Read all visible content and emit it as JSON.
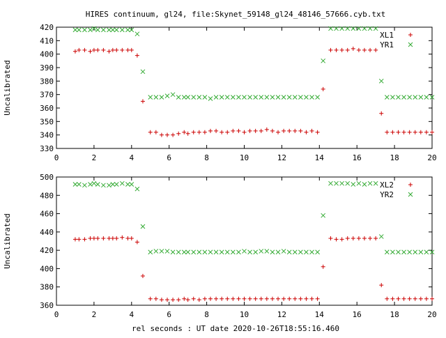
{
  "title": "HIRES continuum, gl24, file:Skynet_59148_gl24_48146_57666.cyb.txt",
  "xlabel": "rel seconds : UT date 2020-10-26T18:55:16.460",
  "colors": {
    "x_series": "#cc0000",
    "y_series": "#33aa33",
    "axes": "#000000"
  },
  "chart_data": [
    {
      "type": "scatter",
      "ylabel": "Uncalibrated",
      "xlim": [
        0,
        20
      ],
      "ylim": [
        330,
        420
      ],
      "x_ticks": [
        0,
        2,
        4,
        6,
        8,
        10,
        12,
        14,
        16,
        18,
        20
      ],
      "y_ticks": [
        330,
        340,
        350,
        360,
        370,
        380,
        390,
        400,
        410,
        420
      ],
      "legend_position": "top-right",
      "series": [
        {
          "name": "XL1",
          "marker": "plus",
          "x": [
            1.0,
            1.2,
            1.5,
            1.8,
            2.0,
            2.2,
            2.5,
            2.8,
            3.0,
            3.2,
            3.5,
            3.8,
            4.0,
            4.3,
            4.6,
            5.0,
            5.3,
            5.6,
            5.9,
            6.2,
            6.5,
            6.8,
            7.0,
            7.3,
            7.6,
            7.9,
            8.2,
            8.5,
            8.8,
            9.1,
            9.4,
            9.7,
            10.0,
            10.3,
            10.6,
            10.9,
            11.2,
            11.5,
            11.8,
            12.1,
            12.4,
            12.7,
            13.0,
            13.3,
            13.6,
            13.9,
            14.2,
            14.6,
            14.9,
            15.2,
            15.5,
            15.8,
            16.1,
            16.4,
            16.7,
            17.0,
            17.3,
            17.6,
            17.9,
            18.2,
            18.5,
            18.8,
            19.1,
            19.4,
            19.7,
            20.0
          ],
          "y": [
            402,
            403,
            403,
            402,
            403,
            403,
            403,
            402,
            403,
            403,
            403,
            403,
            403,
            399,
            365,
            342,
            342,
            340,
            340,
            340,
            341,
            342,
            341,
            342,
            342,
            342,
            343,
            343,
            342,
            342,
            343,
            343,
            342,
            343,
            343,
            343,
            344,
            343,
            342,
            343,
            343,
            343,
            343,
            342,
            343,
            342,
            374,
            403,
            403,
            403,
            403,
            404,
            403,
            403,
            403,
            403,
            356,
            342,
            342,
            342,
            342,
            342,
            342,
            342,
            342,
            342
          ]
        },
        {
          "name": "YR1",
          "marker": "cross",
          "x": [
            1.0,
            1.2,
            1.5,
            1.8,
            2.0,
            2.2,
            2.5,
            2.8,
            3.0,
            3.2,
            3.5,
            3.8,
            4.0,
            4.3,
            4.6,
            5.0,
            5.3,
            5.6,
            5.9,
            6.2,
            6.5,
            6.8,
            7.0,
            7.3,
            7.6,
            7.9,
            8.2,
            8.5,
            8.8,
            9.1,
            9.4,
            9.7,
            10.0,
            10.3,
            10.6,
            10.9,
            11.2,
            11.5,
            11.8,
            12.1,
            12.4,
            12.7,
            13.0,
            13.3,
            13.6,
            13.9,
            14.2,
            14.6,
            14.9,
            15.2,
            15.5,
            15.8,
            16.1,
            16.4,
            16.7,
            17.0,
            17.3,
            17.6,
            17.9,
            18.2,
            18.5,
            18.8,
            19.1,
            19.4,
            19.7,
            20.0
          ],
          "y": [
            418,
            418,
            418,
            418,
            419,
            418,
            418,
            418,
            418,
            418,
            418,
            418,
            418,
            415,
            387,
            368,
            368,
            368,
            369,
            370,
            368,
            368,
            368,
            368,
            368,
            368,
            367,
            368,
            368,
            368,
            368,
            368,
            368,
            368,
            368,
            368,
            368,
            368,
            368,
            368,
            368,
            368,
            368,
            368,
            368,
            368,
            395,
            419,
            419,
            419,
            419,
            419,
            419,
            419,
            419,
            419,
            380,
            368,
            368,
            368,
            368,
            368,
            368,
            368,
            368,
            368
          ]
        }
      ]
    },
    {
      "type": "scatter",
      "ylabel": "Uncalibrated",
      "xlim": [
        0,
        20
      ],
      "ylim": [
        360,
        500
      ],
      "x_ticks": [
        0,
        2,
        4,
        6,
        8,
        10,
        12,
        14,
        16,
        18,
        20
      ],
      "y_ticks": [
        360,
        380,
        400,
        420,
        440,
        460,
        480,
        500
      ],
      "legend_position": "top-right",
      "series": [
        {
          "name": "XL2",
          "marker": "plus",
          "x": [
            1.0,
            1.2,
            1.5,
            1.8,
            2.0,
            2.2,
            2.5,
            2.8,
            3.0,
            3.2,
            3.5,
            3.8,
            4.0,
            4.3,
            4.6,
            5.0,
            5.3,
            5.6,
            5.9,
            6.2,
            6.5,
            6.8,
            7.0,
            7.3,
            7.6,
            7.9,
            8.2,
            8.5,
            8.8,
            9.1,
            9.4,
            9.7,
            10.0,
            10.3,
            10.6,
            10.9,
            11.2,
            11.5,
            11.8,
            12.1,
            12.4,
            12.7,
            13.0,
            13.3,
            13.6,
            13.9,
            14.2,
            14.6,
            14.9,
            15.2,
            15.5,
            15.8,
            16.1,
            16.4,
            16.7,
            17.0,
            17.3,
            17.6,
            17.9,
            18.2,
            18.5,
            18.8,
            19.1,
            19.4,
            19.7,
            20.0
          ],
          "y": [
            432,
            432,
            432,
            433,
            433,
            433,
            433,
            433,
            433,
            433,
            434,
            433,
            433,
            429,
            392,
            367,
            367,
            366,
            366,
            366,
            366,
            367,
            366,
            367,
            366,
            367,
            367,
            367,
            367,
            367,
            367,
            367,
            367,
            367,
            367,
            367,
            367,
            367,
            367,
            367,
            367,
            367,
            367,
            367,
            367,
            367,
            402,
            433,
            432,
            432,
            433,
            433,
            433,
            433,
            433,
            433,
            382,
            367,
            367,
            367,
            367,
            367,
            367,
            367,
            367,
            367
          ]
        },
        {
          "name": "YR2",
          "marker": "cross",
          "x": [
            1.0,
            1.2,
            1.5,
            1.8,
            2.0,
            2.2,
            2.5,
            2.8,
            3.0,
            3.2,
            3.5,
            3.8,
            4.0,
            4.3,
            4.6,
            5.0,
            5.3,
            5.6,
            5.9,
            6.2,
            6.5,
            6.8,
            7.0,
            7.3,
            7.6,
            7.9,
            8.2,
            8.5,
            8.8,
            9.1,
            9.4,
            9.7,
            10.0,
            10.3,
            10.6,
            10.9,
            11.2,
            11.5,
            11.8,
            12.1,
            12.4,
            12.7,
            13.0,
            13.3,
            13.6,
            13.9,
            14.2,
            14.6,
            14.9,
            15.2,
            15.5,
            15.8,
            16.1,
            16.4,
            16.7,
            17.0,
            17.3,
            17.6,
            17.9,
            18.2,
            18.5,
            18.8,
            19.1,
            19.4,
            19.7,
            20.0
          ],
          "y": [
            492,
            492,
            491,
            492,
            493,
            492,
            491,
            491,
            492,
            492,
            493,
            492,
            492,
            487,
            446,
            418,
            419,
            419,
            419,
            418,
            418,
            418,
            418,
            418,
            418,
            418,
            418,
            418,
            418,
            418,
            418,
            418,
            419,
            418,
            418,
            419,
            419,
            418,
            418,
            419,
            418,
            418,
            418,
            418,
            418,
            418,
            458,
            493,
            493,
            493,
            493,
            492,
            493,
            492,
            493,
            493,
            435,
            418,
            418,
            418,
            418,
            418,
            418,
            418,
            418,
            418
          ]
        }
      ]
    }
  ]
}
